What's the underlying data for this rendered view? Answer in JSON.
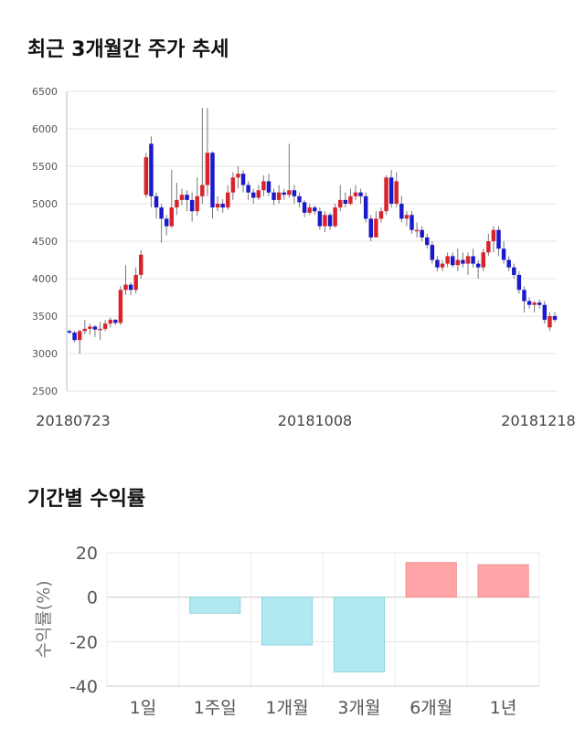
{
  "titles": {
    "price_trend": "최근 3개월간 주가 추세",
    "returns": "기간별 수익률"
  },
  "chart_data": [
    {
      "type": "candlestick",
      "title": "최근 3개월간 주가 추세",
      "ylim": [
        2500,
        6500
      ],
      "y_ticks": [
        2500,
        3000,
        3500,
        4000,
        4500,
        5000,
        5500,
        6000,
        6500
      ],
      "x_tick_labels": [
        "20180723",
        "20181008",
        "20181218"
      ],
      "grid": true,
      "colors": {
        "up": "#d9232b",
        "down": "#1a1acb",
        "wick": "#777777"
      },
      "candles": [
        [
          3300,
          3280,
          3320,
          3260
        ],
        [
          3280,
          3180,
          3300,
          3150
        ],
        [
          3180,
          3300,
          3320,
          3000
        ],
        [
          3300,
          3330,
          3450,
          3260
        ],
        [
          3330,
          3360,
          3400,
          3250
        ],
        [
          3360,
          3320,
          3380,
          3220
        ],
        [
          3320,
          3330,
          3420,
          3180
        ],
        [
          3330,
          3400,
          3450,
          3300
        ],
        [
          3400,
          3450,
          3480,
          3350
        ],
        [
          3450,
          3410,
          3460,
          3380
        ],
        [
          3410,
          3850,
          3900,
          3380
        ],
        [
          3850,
          3920,
          4180,
          3780
        ],
        [
          3920,
          3850,
          3950,
          3780
        ],
        [
          3850,
          4050,
          4150,
          3800
        ],
        [
          4050,
          4320,
          4380,
          4000
        ],
        [
          5120,
          5620,
          5680,
          5080
        ],
        [
          5800,
          5100,
          5900,
          4950
        ],
        [
          5100,
          4950,
          5150,
          4800
        ],
        [
          4950,
          4800,
          5000,
          4480
        ],
        [
          4800,
          4700,
          4850,
          4580
        ],
        [
          4700,
          4950,
          5450,
          4680
        ],
        [
          4950,
          5050,
          5280,
          4850
        ],
        [
          5050,
          5120,
          5200,
          4980
        ],
        [
          5120,
          5050,
          5180,
          4900
        ],
        [
          5050,
          4900,
          5150,
          4760
        ],
        [
          4900,
          5100,
          5350,
          4840
        ],
        [
          5100,
          5250,
          6280,
          5000
        ],
        [
          5250,
          5680,
          6280,
          5100
        ],
        [
          5680,
          4950,
          5700,
          4800
        ],
        [
          4950,
          5000,
          5100,
          4900
        ],
        [
          5000,
          4950,
          5060,
          4880
        ],
        [
          4950,
          5150,
          5250,
          4920
        ],
        [
          5150,
          5350,
          5420,
          5050
        ],
        [
          5350,
          5400,
          5500,
          5200
        ],
        [
          5400,
          5250,
          5450,
          5150
        ],
        [
          5250,
          5150,
          5300,
          5050
        ],
        [
          5150,
          5080,
          5200,
          5000
        ],
        [
          5080,
          5180,
          5250,
          5050
        ],
        [
          5180,
          5300,
          5380,
          5100
        ],
        [
          5300,
          5150,
          5400,
          5100
        ],
        [
          5150,
          5050,
          5200,
          4980
        ],
        [
          5050,
          5150,
          5250,
          5000
        ],
        [
          5150,
          5120,
          5200,
          5050
        ],
        [
          5120,
          5180,
          5800,
          5080
        ],
        [
          5180,
          5100,
          5250,
          5000
        ],
        [
          5100,
          5020,
          5150,
          4950
        ],
        [
          5020,
          4880,
          5050,
          4820
        ],
        [
          4880,
          4950,
          5000,
          4850
        ],
        [
          4950,
          4900,
          4980,
          4850
        ],
        [
          4900,
          4700,
          4950,
          4650
        ],
        [
          4700,
          4850,
          4900,
          4620
        ],
        [
          4850,
          4700,
          4880,
          4650
        ],
        [
          4700,
          4950,
          5000,
          4680
        ],
        [
          4950,
          5050,
          5250,
          4900
        ],
        [
          5050,
          5000,
          5150,
          4950
        ],
        [
          5000,
          5100,
          5200,
          4980
        ],
        [
          5100,
          5150,
          5250,
          5050
        ],
        [
          5150,
          5100,
          5200,
          5000
        ],
        [
          5100,
          4800,
          5150,
          4750
        ],
        [
          4800,
          4550,
          4850,
          4500
        ],
        [
          4550,
          4800,
          4900,
          4550
        ],
        [
          4800,
          4900,
          4950,
          4750
        ],
        [
          4900,
          5350,
          5380,
          4850
        ],
        [
          5350,
          5000,
          5450,
          4950
        ],
        [
          5000,
          5300,
          5420,
          4950
        ],
        [
          5000,
          4800,
          5100,
          4750
        ],
        [
          4800,
          4850,
          4900,
          4700
        ],
        [
          4850,
          4650,
          4900,
          4600
        ],
        [
          4650,
          4650,
          4750,
          4550
        ],
        [
          4650,
          4550,
          4700,
          4500
        ],
        [
          4550,
          4450,
          4600,
          4400
        ],
        [
          4450,
          4250,
          4500,
          4200
        ],
        [
          4250,
          4150,
          4300,
          4100
        ],
        [
          4150,
          4200,
          4250,
          4100
        ],
        [
          4200,
          4300,
          4350,
          4150
        ],
        [
          4300,
          4180,
          4350,
          4150
        ],
        [
          4180,
          4250,
          4400,
          4100
        ],
        [
          4250,
          4200,
          4350,
          4150
        ],
        [
          4200,
          4300,
          4350,
          4050
        ],
        [
          4300,
          4200,
          4400,
          4150
        ],
        [
          4200,
          4150,
          4250,
          4000
        ],
        [
          4150,
          4350,
          4400,
          4100
        ],
        [
          4350,
          4500,
          4600,
          4300
        ],
        [
          4500,
          4650,
          4700,
          4350
        ],
        [
          4650,
          4400,
          4700,
          4300
        ],
        [
          4400,
          4250,
          4500,
          4200
        ],
        [
          4250,
          4150,
          4300,
          4100
        ],
        [
          4150,
          4050,
          4200,
          4000
        ],
        [
          4050,
          3850,
          4100,
          3800
        ],
        [
          3850,
          3700,
          3900,
          3550
        ],
        [
          3700,
          3650,
          3750,
          3600
        ],
        [
          3650,
          3680,
          3700,
          3550
        ],
        [
          3680,
          3650,
          3720,
          3600
        ],
        [
          3650,
          3450,
          3700,
          3400
        ],
        [
          3350,
          3500,
          3550,
          3300
        ],
        [
          3500,
          3450,
          3550,
          3420
        ]
      ]
    },
    {
      "type": "bar",
      "title": "기간별 수익률",
      "ylabel": "수익률(%)",
      "ylim": [
        -40,
        20
      ],
      "y_ticks": [
        -40,
        -20,
        0,
        20
      ],
      "categories": [
        "1일",
        "1주일",
        "1개월",
        "3개월",
        "6개월",
        "1년"
      ],
      "values": [
        0,
        -7.2,
        -21.5,
        -33.6,
        15.6,
        14.6
      ],
      "colors": {
        "positive": "#ffa5a8",
        "negative": "#b1e9f1",
        "positive_stroke": "#ee8f92",
        "negative_stroke": "#8ed4df"
      }
    }
  ]
}
